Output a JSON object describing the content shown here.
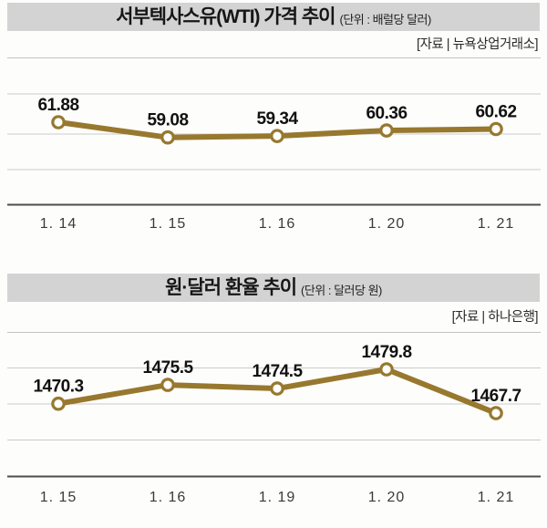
{
  "page": {
    "background": "#fdfdfb"
  },
  "styles": {
    "accent": "#97782e",
    "header_bg": "#d3d3d3",
    "grid_color": "#cccccc",
    "axis_color": "#4d4d4d",
    "separator_color": "#c3c3c3",
    "marker_fill": "#ffffff",
    "value_label_color": "#111111",
    "date_label_color": "#3a3a3a"
  },
  "chart_data": [
    {
      "type": "line",
      "title": "서부텍사스유(WTI) 가격 추이",
      "unit_label": "(단위 : 배럴당 달러)",
      "source_label": "[자료 | 뉴욕상업거래소]",
      "categories": [
        "1. 14",
        "1. 15",
        "1. 16",
        "1. 20",
        "1. 21"
      ],
      "values": [
        61.88,
        59.08,
        59.34,
        60.36,
        60.62
      ],
      "value_labels": [
        "61.88",
        "59.08",
        "59.34",
        "60.36",
        "60.62"
      ],
      "xlabel": "",
      "ylabel": "",
      "ylim": [
        58.5,
        62.5
      ],
      "grid": true,
      "legend": false
    },
    {
      "type": "line",
      "title": "원·달러 환율 추이",
      "unit_label": "(단위 : 달러당 원)",
      "source_label": "[자료 | 하나은행]",
      "categories": [
        "1. 15",
        "1. 16",
        "1. 19",
        "1. 20",
        "1. 21"
      ],
      "values": [
        1470.3,
        1475.5,
        1474.5,
        1479.8,
        1467.7
      ],
      "value_labels": [
        "1470.3",
        "1475.5",
        "1474.5",
        "1479.8",
        "1467.7"
      ],
      "xlabel": "",
      "ylabel": "",
      "ylim": [
        1462,
        1484
      ],
      "grid": true,
      "legend": false
    }
  ]
}
